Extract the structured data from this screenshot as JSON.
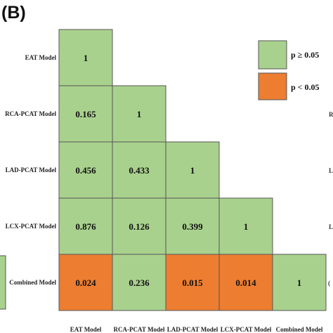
{
  "panel_label": "(B)",
  "chart_data": {
    "type": "heatmap",
    "rows": [
      "EAT Model",
      "RCA-PCAT Model",
      "LAD-PCAT Model",
      "LCX-PCAT Model",
      "Combined Model"
    ],
    "columns": [
      "EAT Model",
      "RCA-PCAT Model",
      "LAD-PCAT Model",
      "LCX-PCAT Model",
      "Combined Model"
    ],
    "cells": [
      {
        "row": 0,
        "col": 0,
        "value": "1"
      },
      {
        "row": 1,
        "col": 0,
        "value": "0.165"
      },
      {
        "row": 1,
        "col": 1,
        "value": "1"
      },
      {
        "row": 2,
        "col": 0,
        "value": "0.456"
      },
      {
        "row": 2,
        "col": 1,
        "value": "0.433"
      },
      {
        "row": 2,
        "col": 2,
        "value": "1"
      },
      {
        "row": 3,
        "col": 0,
        "value": "0.876"
      },
      {
        "row": 3,
        "col": 1,
        "value": "0.126"
      },
      {
        "row": 3,
        "col": 2,
        "value": "0.399"
      },
      {
        "row": 3,
        "col": 3,
        "value": "1"
      },
      {
        "row": 4,
        "col": 0,
        "value": "0.024"
      },
      {
        "row": 4,
        "col": 1,
        "value": "0.236"
      },
      {
        "row": 4,
        "col": 2,
        "value": "0.015"
      },
      {
        "row": 4,
        "col": 3,
        "value": "0.014"
      },
      {
        "row": 4,
        "col": 4,
        "value": "1"
      }
    ],
    "threshold": 0.05,
    "legend": [
      {
        "label": "p ≥ 0.05",
        "color": "#a9d18e"
      },
      {
        "label": "p < 0.05",
        "color": "#ed7d31"
      }
    ],
    "legend_position": "top-right"
  },
  "colors": {
    "non_significant": "#a9d18e",
    "significant": "#ed7d31",
    "cell_border": "#555555"
  },
  "edge_fragments": {
    "right": [
      "R",
      "L",
      "L"
    ],
    "right_glyph": "("
  }
}
